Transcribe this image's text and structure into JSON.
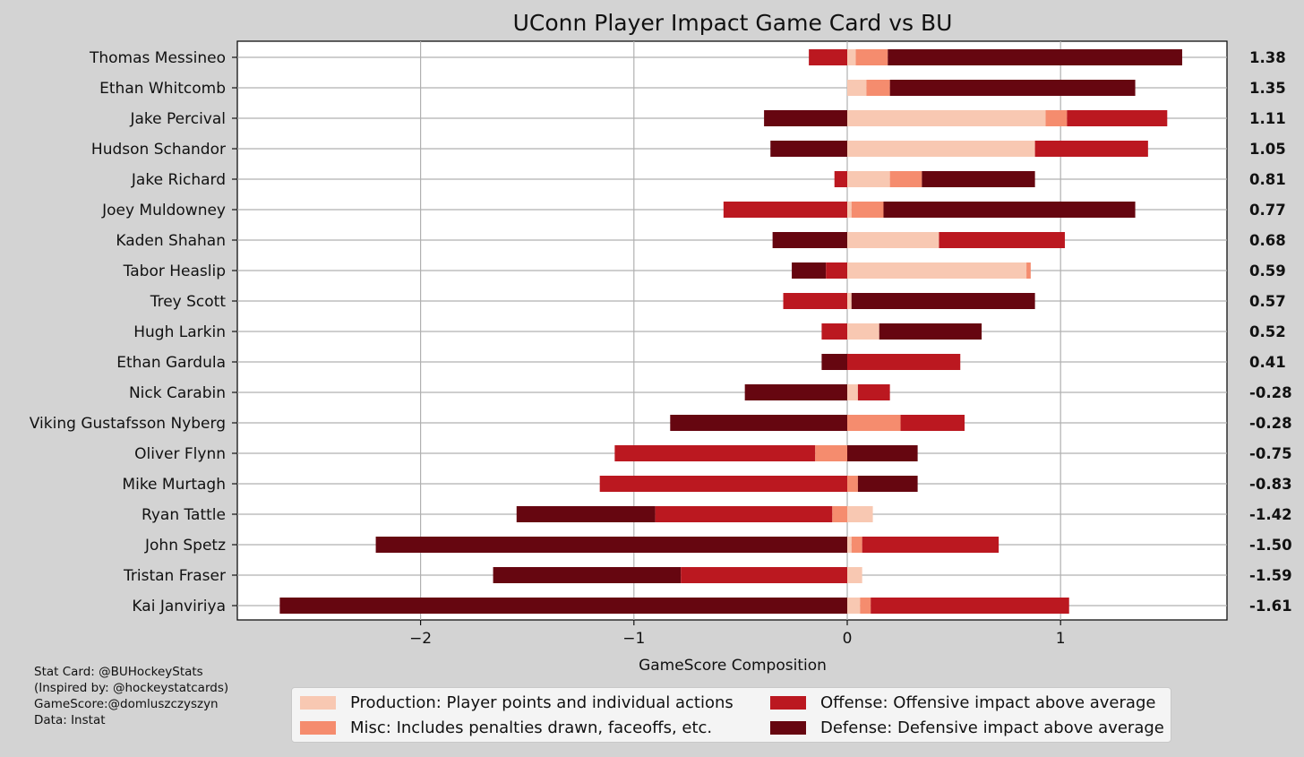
{
  "chart_data": {
    "type": "bar",
    "title": "UConn Player Impact Game Card vs BU",
    "xlabel": "GameScore Composition",
    "ylabel": "",
    "xlim": [
      -2.8,
      1.8
    ],
    "xticks": [
      -2,
      -1,
      0,
      1
    ],
    "xtick_labels": [
      "−2",
      "−1",
      "0",
      "1"
    ],
    "grid": true,
    "legend_position": "bottom-center",
    "components": [
      {
        "key": "production",
        "name": "Production: Player points and individual actions",
        "color": "#f8c8b2"
      },
      {
        "key": "misc",
        "name": "Misc: Includes penalties drawn, faceoffs, etc.",
        "color": "#f58c6e"
      },
      {
        "key": "offense",
        "name": "Offense: Offensive impact above average",
        "color": "#bb1820"
      },
      {
        "key": "defense",
        "name": "Defense: Defensive impact above average",
        "color": "#660610"
      }
    ],
    "players": [
      {
        "name": "Thomas Messineo",
        "total": "1.38",
        "segments": [
          [
            -0.18,
            0,
            "offense"
          ],
          [
            0,
            0.04,
            "production"
          ],
          [
            0.04,
            0.19,
            "misc"
          ],
          [
            0.19,
            1.57,
            "defense"
          ]
        ]
      },
      {
        "name": "Ethan Whitcomb",
        "total": "1.35",
        "segments": [
          [
            0,
            0.09,
            "production"
          ],
          [
            0.09,
            0.2,
            "misc"
          ],
          [
            0.2,
            1.35,
            "defense"
          ]
        ]
      },
      {
        "name": "Jake Percival",
        "total": "1.11",
        "segments": [
          [
            -0.39,
            0,
            "defense"
          ],
          [
            0,
            0.93,
            "production"
          ],
          [
            0.93,
            1.03,
            "misc"
          ],
          [
            1.03,
            1.5,
            "offense"
          ]
        ]
      },
      {
        "name": "Hudson Schandor",
        "total": "1.05",
        "segments": [
          [
            -0.36,
            0,
            "defense"
          ],
          [
            0,
            0.88,
            "production"
          ],
          [
            0.88,
            1.41,
            "offense"
          ]
        ]
      },
      {
        "name": "Jake Richard",
        "total": "0.81",
        "segments": [
          [
            -0.06,
            0,
            "offense"
          ],
          [
            0,
            0.2,
            "production"
          ],
          [
            0.2,
            0.35,
            "misc"
          ],
          [
            0.35,
            0.88,
            "defense"
          ]
        ]
      },
      {
        "name": "Joey Muldowney",
        "total": "0.77",
        "segments": [
          [
            -0.58,
            0,
            "offense"
          ],
          [
            0,
            0.02,
            "production"
          ],
          [
            0.02,
            0.17,
            "misc"
          ],
          [
            0.17,
            1.35,
            "defense"
          ]
        ]
      },
      {
        "name": "Kaden Shahan",
        "total": "0.68",
        "segments": [
          [
            -0.35,
            0,
            "defense"
          ],
          [
            0,
            0.43,
            "production"
          ],
          [
            0.43,
            1.02,
            "offense"
          ]
        ]
      },
      {
        "name": "Tabor Heaslip",
        "total": "0.59",
        "segments": [
          [
            -0.26,
            -0.1,
            "defense"
          ],
          [
            -0.1,
            0,
            "offense"
          ],
          [
            0,
            0.84,
            "production"
          ],
          [
            0.84,
            0.86,
            "misc"
          ]
        ]
      },
      {
        "name": "Trey Scott",
        "total": "0.57",
        "segments": [
          [
            -0.3,
            0,
            "offense"
          ],
          [
            0,
            0.02,
            "production"
          ],
          [
            0.02,
            0.88,
            "defense"
          ]
        ]
      },
      {
        "name": "Hugh Larkin",
        "total": "0.52",
        "segments": [
          [
            -0.12,
            0,
            "offense"
          ],
          [
            0,
            0.15,
            "production"
          ],
          [
            0.15,
            0.63,
            "defense"
          ]
        ]
      },
      {
        "name": "Ethan Gardula",
        "total": "0.41",
        "segments": [
          [
            -0.12,
            0,
            "defense"
          ],
          [
            0,
            0.53,
            "offense"
          ]
        ]
      },
      {
        "name": "Nick Carabin",
        "total": "-0.28",
        "segments": [
          [
            -0.48,
            0,
            "defense"
          ],
          [
            0,
            0.05,
            "production"
          ],
          [
            0.05,
            0.2,
            "offense"
          ]
        ]
      },
      {
        "name": "Viking Gustafsson Nyberg",
        "total": "-0.28",
        "segments": [
          [
            -0.83,
            0,
            "defense"
          ],
          [
            0,
            0.25,
            "misc"
          ],
          [
            0.25,
            0.55,
            "offense"
          ]
        ]
      },
      {
        "name": "Oliver Flynn",
        "total": "-0.75",
        "segments": [
          [
            -1.09,
            -0.15,
            "offense"
          ],
          [
            -0.15,
            0,
            "misc"
          ],
          [
            0,
            0.33,
            "defense"
          ]
        ]
      },
      {
        "name": "Mike Murtagh",
        "total": "-0.83",
        "segments": [
          [
            -1.16,
            0,
            "offense"
          ],
          [
            0,
            0.05,
            "misc"
          ],
          [
            0.05,
            0.33,
            "defense"
          ]
        ]
      },
      {
        "name": "Ryan Tattle",
        "total": "-1.42",
        "segments": [
          [
            -1.55,
            -0.9,
            "defense"
          ],
          [
            -0.9,
            -0.07,
            "offense"
          ],
          [
            -0.07,
            0,
            "misc"
          ],
          [
            0,
            0.12,
            "production"
          ]
        ]
      },
      {
        "name": "John Spetz",
        "total": "-1.50",
        "segments": [
          [
            -2.21,
            0,
            "defense"
          ],
          [
            0,
            0.02,
            "production"
          ],
          [
            0.02,
            0.07,
            "misc"
          ],
          [
            0.07,
            0.71,
            "offense"
          ]
        ]
      },
      {
        "name": "Tristan Fraser",
        "total": "-1.59",
        "segments": [
          [
            -1.66,
            -0.78,
            "defense"
          ],
          [
            -0.78,
            0,
            "offense"
          ],
          [
            0,
            0.07,
            "production"
          ]
        ]
      },
      {
        "name": "Kai Janviriya",
        "total": "-1.61",
        "segments": [
          [
            -2.66,
            0,
            "defense"
          ],
          [
            0,
            0.06,
            "production"
          ],
          [
            0.06,
            0.11,
            "misc"
          ],
          [
            0.11,
            1.04,
            "offense"
          ]
        ]
      }
    ]
  },
  "credits": [
    "Stat Card: @BUHockeyStats",
    "(Inspired by: @hockeystatcards)",
    "GameScore:@domluszczyszyn",
    "Data: Instat"
  ]
}
